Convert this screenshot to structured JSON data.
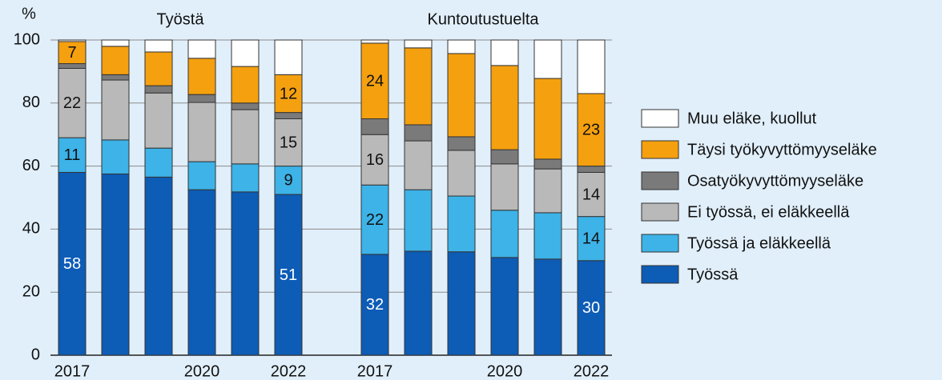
{
  "chart_data": {
    "type": "stacked_bar",
    "ylabel": "%",
    "groups": [
      "Työstä",
      "Kuntoutustuelta"
    ],
    "categories": [
      "2017",
      null,
      null,
      "2020",
      null,
      "2022",
      "2017",
      null,
      null,
      "2020",
      null,
      "2022"
    ],
    "ylim": [
      0,
      100
    ],
    "yticks": [
      0,
      20,
      40,
      60,
      80,
      100
    ],
    "grid": true,
    "legend": "right",
    "series": [
      {
        "name": "Työssä",
        "color": "#0d5cb6",
        "label_color": "#ffffff",
        "values": [
          58,
          57.5,
          56.5,
          52.5,
          51.8,
          51,
          32,
          33,
          32.8,
          31,
          30.5,
          30
        ],
        "value_labels": [
          "58",
          null,
          null,
          null,
          null,
          "51",
          "32",
          null,
          null,
          null,
          null,
          "30"
        ]
      },
      {
        "name": "Työssä ja eläkkeellä",
        "color": "#3db3e8",
        "label_color": "#111111",
        "values": [
          11,
          10.8,
          9.2,
          8.9,
          8.9,
          9,
          22,
          19.5,
          17.7,
          15,
          14.7,
          14
        ],
        "value_labels": [
          "11",
          null,
          null,
          null,
          null,
          "9",
          "22",
          null,
          null,
          null,
          null,
          "14"
        ]
      },
      {
        "name": "Ei työssä, ei eläkkeellä",
        "color": "#b9b9b9",
        "label_color": "#111111",
        "values": [
          22,
          19,
          17.5,
          18.8,
          17.2,
          15,
          16,
          15.5,
          14.5,
          14.7,
          13.9,
          14
        ],
        "value_labels": [
          "22",
          null,
          null,
          null,
          null,
          "15",
          "16",
          null,
          null,
          null,
          null,
          "14"
        ]
      },
      {
        "name": "Osatyökyvyttömyyseläke",
        "color": "#7a7a7a",
        "label_color": "#111111",
        "values": [
          1.5,
          1.7,
          2.3,
          2.5,
          2.1,
          2,
          5,
          5.1,
          4.3,
          4.5,
          3.1,
          2
        ],
        "value_labels": [
          null,
          null,
          null,
          null,
          null,
          null,
          null,
          null,
          null,
          null,
          null,
          null
        ]
      },
      {
        "name": "Täysi työkyvyttömyyseläke",
        "color": "#f5a00f",
        "label_color": "#111111",
        "values": [
          7,
          9,
          10.7,
          11.5,
          11.6,
          12,
          24,
          24.4,
          26.4,
          26.7,
          25.6,
          23
        ],
        "value_labels": [
          "7",
          null,
          null,
          null,
          null,
          "12",
          "24",
          null,
          null,
          null,
          null,
          "23"
        ]
      },
      {
        "name": "Muu eläke, kuollut",
        "color": "#ffffff",
        "label_color": "#111111",
        "values": [
          0.5,
          2,
          3.8,
          5.8,
          8.4,
          11,
          1,
          2.5,
          4.3,
          8.1,
          12.2,
          17
        ],
        "value_labels": [
          null,
          null,
          null,
          null,
          null,
          null,
          null,
          null,
          null,
          null,
          null,
          null
        ]
      }
    ]
  }
}
